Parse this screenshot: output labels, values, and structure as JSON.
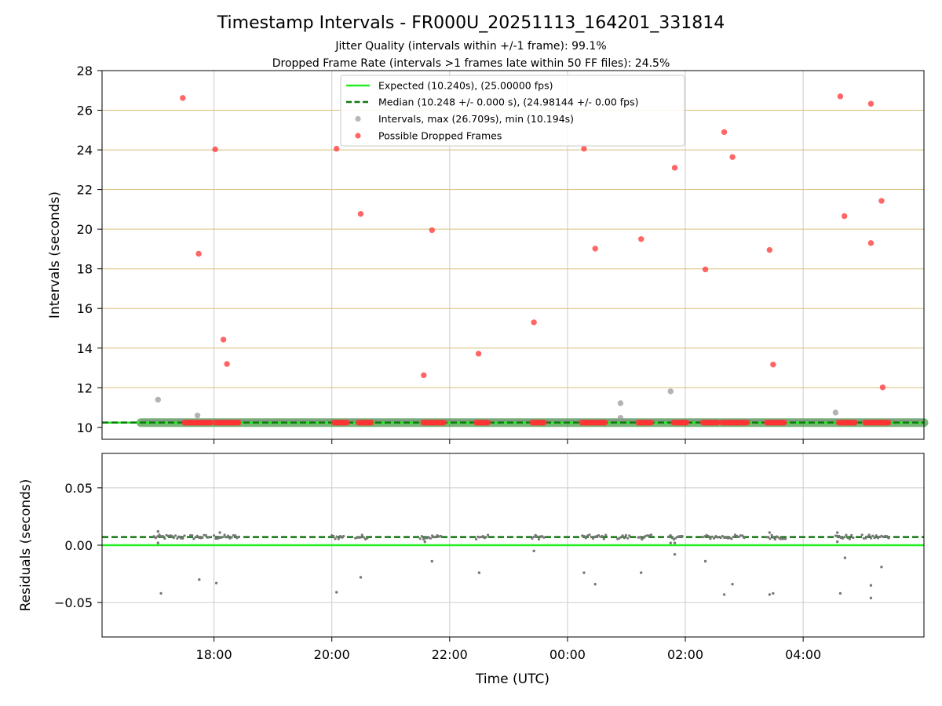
{
  "chart_data": [
    {
      "type": "scatter",
      "title": "Timestamp Intervals - FR000U_20251113_164201_331814",
      "subtitle_lines": [
        "Jitter Quality (intervals within +/-1 frame): 99.1%",
        "Dropped Frame Rate (intervals >1 frames late within 50 FF files): 24.5%"
      ],
      "xlabel": "",
      "ylabel": "Intervals (seconds)",
      "xlim_hours": [
        16.1,
        30.05
      ],
      "ylim": [
        9.4,
        28
      ],
      "yticks": [
        10,
        12,
        14,
        16,
        18,
        20,
        22,
        24,
        26,
        28
      ],
      "ytick_labels": [
        "10",
        "12",
        "14",
        "16",
        "18",
        "20",
        "22",
        "24",
        "26",
        "28"
      ],
      "xticks_hours": [
        18,
        20,
        22,
        24,
        26,
        28
      ],
      "legend": {
        "placement": "upper-center",
        "entries": [
          "Expected (10.240s), (25.00000 fps)",
          "Median (10.248 +/- 0.000 s), (24.98144 +/- 0.00 fps)",
          "Intervals, max (26.709s), min (10.194s)",
          "Possible Dropped Frames"
        ]
      },
      "expected_line": {
        "name": "Expected (10.240s), (25.00000 fps)",
        "y": 10.24,
        "color": "#22ee22"
      },
      "median_line": {
        "name": "Median (10.248 +/- 0.000 s), (24.98144 +/- 0.00 fps)",
        "y": 10.248,
        "color": "#117711"
      },
      "baseline_band": {
        "x_start_hours": 16.76,
        "x_end_hours": 30.05,
        "y": 10.24
      },
      "series": [
        {
          "name": "Intervals, max (26.709s), min (10.194s)",
          "color": "#999999",
          "points": [
            [
              17.05,
              11.4
            ],
            [
              17.72,
              10.6
            ],
            [
              24.9,
              11.22
            ],
            [
              24.9,
              10.48
            ],
            [
              25.75,
              11.82
            ],
            [
              28.55,
              10.75
            ]
          ]
        },
        {
          "name": "Possible Dropped Frames",
          "color": "#ff3333",
          "points": [
            [
              17.47,
              26.62
            ],
            [
              17.74,
              18.76
            ],
            [
              18.02,
              24.03
            ],
            [
              18.16,
              14.43
            ],
            [
              18.22,
              13.2
            ],
            [
              20.08,
              24.06
            ],
            [
              20.49,
              20.77
            ],
            [
              21.7,
              19.95
            ],
            [
              21.56,
              12.63
            ],
            [
              22.49,
              13.72
            ],
            [
              23.43,
              15.3
            ],
            [
              24.28,
              24.06
            ],
            [
              24.47,
              19.02
            ],
            [
              25.25,
              19.5
            ],
            [
              25.82,
              23.1
            ],
            [
              26.34,
              17.97
            ],
            [
              26.66,
              24.9
            ],
            [
              26.8,
              23.64
            ],
            [
              27.43,
              18.95
            ],
            [
              27.49,
              13.17
            ],
            [
              28.63,
              26.7
            ],
            [
              28.7,
              20.66
            ],
            [
              29.15,
              19.3
            ],
            [
              29.15,
              26.33
            ],
            [
              29.33,
              21.43
            ],
            [
              29.35,
              12.02
            ]
          ],
          "baseline_clusters_hours": [
            [
              17.5,
              17.7
            ],
            [
              17.72,
              17.95
            ],
            [
              18.02,
              18.42
            ],
            [
              20.04,
              20.26
            ],
            [
              20.45,
              20.67
            ],
            [
              21.55,
              21.9
            ],
            [
              22.45,
              22.65
            ],
            [
              23.4,
              23.6
            ],
            [
              24.24,
              24.64
            ],
            [
              25.2,
              25.42
            ],
            [
              25.8,
              26.02
            ],
            [
              26.3,
              26.55
            ],
            [
              26.62,
              27.05
            ],
            [
              27.38,
              27.68
            ],
            [
              28.6,
              28.88
            ],
            [
              29.05,
              29.45
            ]
          ]
        }
      ]
    },
    {
      "type": "scatter",
      "title": "",
      "xlabel": "Time (UTC)",
      "ylabel": "Residuals (seconds)",
      "xlim_hours": [
        16.1,
        30.05
      ],
      "ylim": [
        -0.08,
        0.08
      ],
      "yticks": [
        -0.05,
        0.0,
        0.05
      ],
      "ytick_labels": [
        "−0.05",
        "0.00",
        "0.05"
      ],
      "xticks_hours": [
        18,
        20,
        22,
        24,
        26,
        28
      ],
      "xtick_labels": [
        "18:00",
        "20:00",
        "22:00",
        "00:00",
        "02:00",
        "04:00"
      ],
      "expected_line": {
        "y": 0.0,
        "color": "#22ee22"
      },
      "median_line": {
        "y": 0.0071,
        "color": "#117711"
      },
      "series": [
        {
          "name": "Residuals",
          "color": "#777777",
          "outliers": [
            [
              17.1,
              -0.042
            ],
            [
              17.75,
              -0.03
            ],
            [
              18.04,
              -0.033
            ],
            [
              20.08,
              -0.041
            ],
            [
              20.49,
              -0.028
            ],
            [
              21.7,
              -0.014
            ],
            [
              22.5,
              -0.024
            ],
            [
              23.43,
              -0.005
            ],
            [
              24.28,
              -0.024
            ],
            [
              24.47,
              -0.034
            ],
            [
              25.25,
              -0.024
            ],
            [
              25.82,
              -0.008
            ],
            [
              26.34,
              -0.014
            ],
            [
              26.66,
              -0.043
            ],
            [
              26.8,
              -0.034
            ],
            [
              27.43,
              -0.043
            ],
            [
              27.49,
              -0.042
            ],
            [
              28.63,
              -0.042
            ],
            [
              28.71,
              -0.011
            ],
            [
              29.15,
              -0.035
            ],
            [
              29.15,
              -0.046
            ],
            [
              29.33,
              -0.019
            ],
            [
              17.05,
              0.012
            ],
            [
              17.05,
              0.002
            ],
            [
              18.1,
              0.011
            ],
            [
              21.58,
              0.003
            ],
            [
              25.75,
              0.002
            ],
            [
              25.82,
              0.002
            ],
            [
              27.43,
              0.011
            ],
            [
              28.58,
              0.003
            ],
            [
              28.58,
              0.011
            ]
          ],
          "baseline_clusters_hours": [
            [
              16.98,
              17.5
            ],
            [
              17.6,
              17.92
            ],
            [
              18.0,
              18.42
            ],
            [
              20.0,
              20.2
            ],
            [
              20.4,
              20.6
            ],
            [
              21.5,
              21.85
            ],
            [
              22.45,
              22.65
            ],
            [
              23.4,
              23.6
            ],
            [
              24.25,
              24.65
            ],
            [
              24.85,
              25.05
            ],
            [
              25.2,
              25.42
            ],
            [
              25.72,
              25.95
            ],
            [
              26.3,
              26.55
            ],
            [
              26.6,
              27.0
            ],
            [
              27.38,
              27.7
            ],
            [
              28.55,
              28.85
            ],
            [
              29.0,
              29.45
            ]
          ]
        }
      ]
    }
  ]
}
